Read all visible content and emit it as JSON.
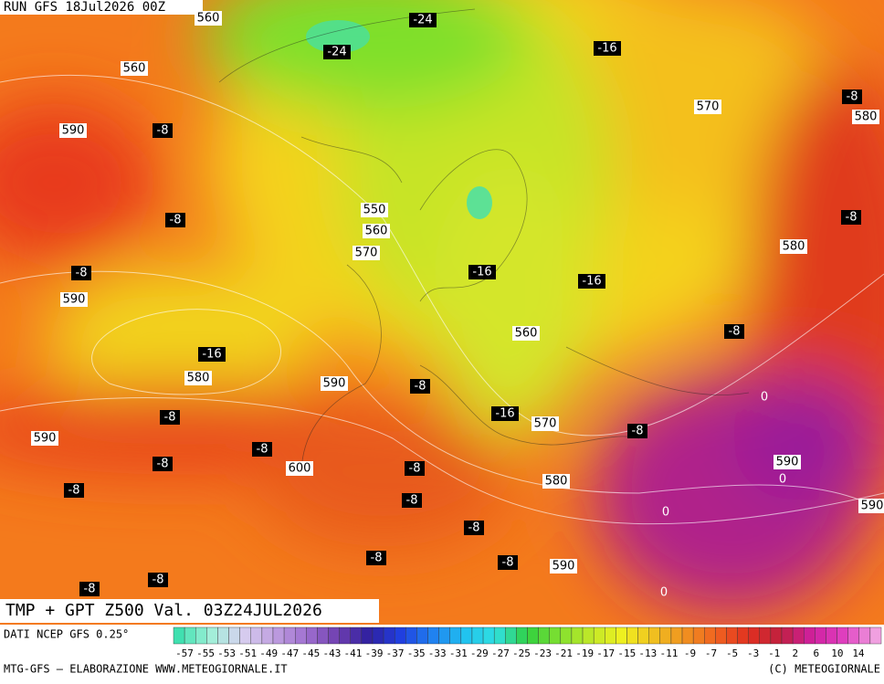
{
  "header": {
    "run": "RUN GFS 18Jul2026 00Z"
  },
  "map": {
    "gpt_labels": [
      560,
      560,
      590,
      550,
      560,
      570,
      590,
      580,
      590,
      590,
      600,
      570,
      580,
      580,
      560,
      570,
      580,
      590,
      590,
      590
    ],
    "temp_labels": [
      -24,
      -24,
      -16,
      -8,
      -8,
      -8,
      -8,
      -8,
      -16,
      -16,
      -16,
      -8,
      -8,
      -16,
      -8,
      -8,
      -8,
      -8,
      -8,
      -8,
      -8,
      -8,
      -8,
      -8,
      -8,
      -8
    ],
    "zero_labels": [
      0,
      0,
      0,
      0
    ]
  },
  "title": "TMP + GPT Z500 Val. 03Z24JUL2026",
  "colorbar": {
    "source": "DATI NCEP GFS 0.25°",
    "ticks": [
      -57,
      -55,
      -53,
      -51,
      -49,
      -47,
      -45,
      -43,
      -41,
      -39,
      -37,
      -35,
      -33,
      -31,
      -29,
      -27,
      -25,
      -23,
      -21,
      -19,
      -17,
      -15,
      -13,
      -11,
      -9,
      -7,
      -5,
      -3,
      -1,
      2,
      6,
      10,
      14
    ]
  },
  "footer": {
    "left": "MTG-GFS — ELABORAZIONE WWW.METEOGIORNALE.IT",
    "right": "(C) METEOGIORNALE"
  }
}
